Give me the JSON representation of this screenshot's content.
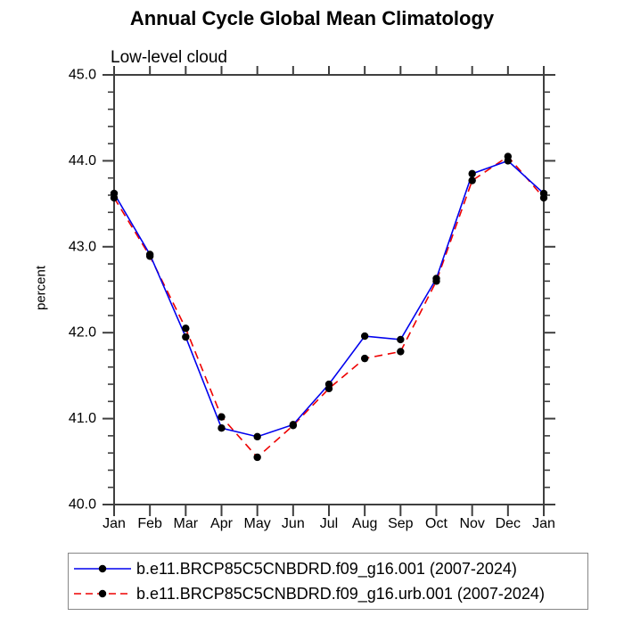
{
  "title": "Annual Cycle Global Mean Climatology",
  "subtitle": "Low-level cloud",
  "chart_data": {
    "type": "line",
    "title": "Annual Cycle Global Mean Climatology",
    "subtitle": "Low-level cloud",
    "xlabel": "",
    "ylabel": "percent",
    "categories": [
      "Jan",
      "Feb",
      "Mar",
      "Apr",
      "May",
      "Jun",
      "Jul",
      "Aug",
      "Sep",
      "Oct",
      "Nov",
      "Dec",
      "Jan"
    ],
    "series": [
      {
        "name": "b.e11.BRCP85C5CNBDRD.f09_g16.001 (2007-2024)",
        "color": "#0000ee",
        "line_style": "solid",
        "marker": "filled-circle",
        "marker_color": "#000000",
        "values": [
          43.62,
          42.91,
          41.95,
          40.89,
          40.79,
          40.93,
          41.4,
          41.96,
          41.92,
          42.63,
          43.85,
          44.0,
          43.62
        ]
      },
      {
        "name": "b.e11.BRCP85C5CNBDRD.f09_g16.urb.001 (2007-2024)",
        "color": "#ee0000",
        "line_style": "dashed",
        "marker": "filled-circle",
        "marker_color": "#000000",
        "values": [
          43.57,
          42.89,
          42.05,
          41.02,
          40.55,
          40.92,
          41.35,
          41.7,
          41.78,
          42.6,
          43.77,
          44.05,
          43.57
        ]
      }
    ],
    "ylim": [
      40.0,
      45.0
    ],
    "ytick_step": 1.0,
    "yminor_step": 0.2,
    "ytick_labels": [
      "40.0",
      "41.0",
      "42.0",
      "43.0",
      "44.0",
      "45.0"
    ],
    "grid": false,
    "legend_position": "bottom-box",
    "axis_color": "#3f3f3f",
    "text_color": "#000000"
  }
}
